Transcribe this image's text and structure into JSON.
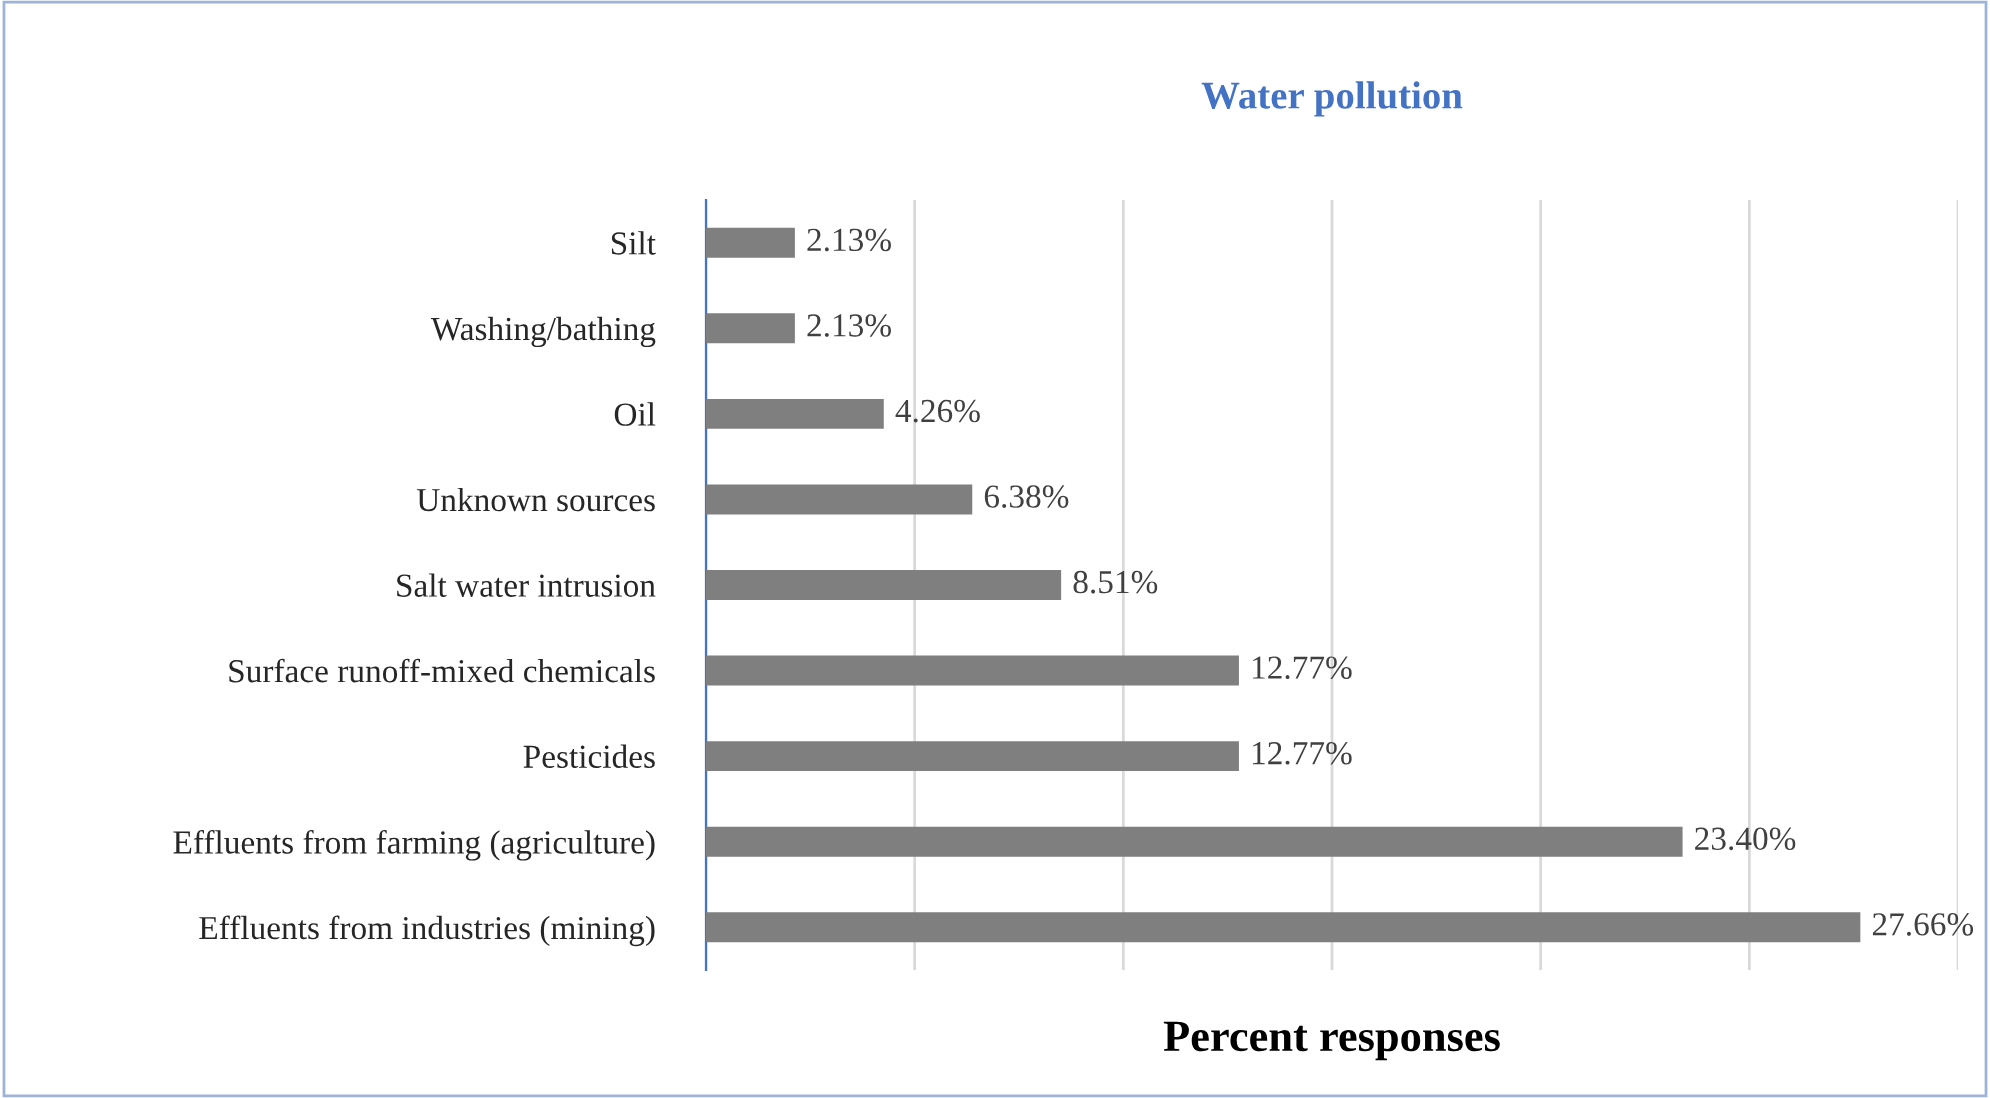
{
  "chart_data": {
    "type": "bar",
    "orientation": "horizontal",
    "title": "Water pollution",
    "xlabel": "Percent responses",
    "categories": [
      "Silt",
      "Washing/bathing",
      "Oil",
      "Unknown sources",
      "Salt water intrusion",
      "Surface runoff-mixed chemicals",
      "Pesticides",
      "Effluents from farming (agriculture)",
      "Effluents from industries (mining)"
    ],
    "values": [
      2.13,
      2.13,
      4.26,
      6.38,
      8.51,
      12.77,
      12.77,
      23.4,
      27.66
    ],
    "value_labels": [
      "2.13%",
      "2.13%",
      "4.26%",
      "6.38%",
      "8.51%",
      "12.77%",
      "12.77%",
      "23.40%",
      "27.66%"
    ],
    "color": "#7f7f7f",
    "xlim": [
      0,
      30
    ],
    "xticks": [
      {
        "value": 0,
        "label": null
      },
      {
        "value": 5,
        "label": null
      },
      {
        "value": 10,
        "label": null
      },
      {
        "value": 15,
        "label": null
      },
      {
        "value": 20,
        "label": null
      },
      {
        "value": 25,
        "label": null
      },
      {
        "value": 30,
        "label": null
      }
    ],
    "grid": "x",
    "tick_labels": "y"
  }
}
